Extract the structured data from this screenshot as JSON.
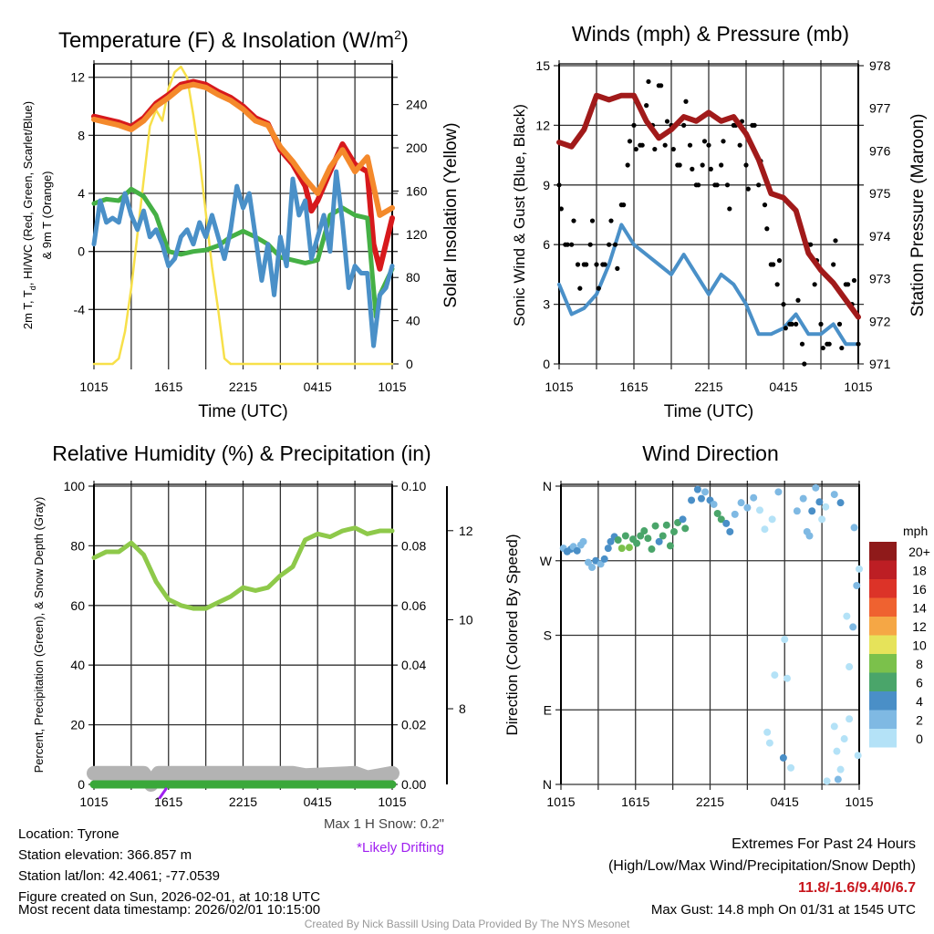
{
  "chart_data": [
    {
      "type": "line",
      "title": "Temperature (F) & Insolation (W/m2)",
      "xlabel": "Time (UTC)",
      "ylabel": "2m T, Td, HI/WC (Red, Green, Scarlet/Blue) & 9m T (Orange)",
      "ylabel2": "Solar Insolation (Yellow)",
      "ylim": [
        -7.75,
        12.8
      ],
      "ylim2": [
        0,
        276
      ],
      "yticks": [
        "12",
        "8",
        "4",
        "0",
        "-4"
      ],
      "yticks2": [
        "240",
        "200",
        "160",
        "120",
        "80",
        "40",
        "0"
      ],
      "xticks": [
        "1015",
        "1615",
        "2215",
        "0415",
        "1015"
      ],
      "series": [
        {
          "name": "9m T",
          "color": "#f4892b",
          "x": [
            0,
            1,
            2,
            3,
            4,
            5,
            6,
            7,
            8,
            9,
            10,
            11,
            12,
            13,
            14,
            15,
            16,
            17,
            18,
            19,
            20,
            21,
            22,
            23,
            24
          ],
          "values": [
            9.1,
            8.9,
            8.7,
            8.4,
            9.0,
            10.0,
            10.6,
            11.3,
            11.5,
            11.3,
            10.8,
            10.4,
            9.8,
            9.0,
            8.7,
            7.2,
            6.2,
            5.0,
            4.0,
            5.8,
            7.0,
            5.5,
            6.5,
            2.5,
            3.0
          ]
        },
        {
          "name": "2m T",
          "color": "#d7191c",
          "x": [
            0,
            1,
            2,
            3,
            4,
            5,
            6,
            7,
            8,
            9,
            10,
            11,
            12,
            13,
            14,
            15,
            16,
            17,
            17.5,
            18,
            19,
            20,
            21,
            22,
            22.5,
            23,
            24
          ],
          "values": [
            9.3,
            9.1,
            8.9,
            8.6,
            9.2,
            10.2,
            10.8,
            11.5,
            11.7,
            11.5,
            11.0,
            10.6,
            10.0,
            9.2,
            8.8,
            7.0,
            6.0,
            4.5,
            2.8,
            3.5,
            5.5,
            7.4,
            6.0,
            5.5,
            0.5,
            -1.2,
            2.3
          ]
        },
        {
          "name": "Td",
          "color": "#45b045",
          "x": [
            0,
            1,
            2,
            3,
            4,
            5,
            6,
            7,
            8,
            9,
            10,
            11,
            12,
            13,
            14,
            15,
            16,
            17,
            18,
            19,
            20,
            21,
            22,
            22.7,
            23,
            24
          ],
          "values": [
            3.3,
            3.6,
            3.5,
            4.3,
            3.8,
            2.5,
            0,
            -0.2,
            0,
            0.1,
            0.4,
            1.0,
            1.4,
            1.0,
            0.5,
            -0.4,
            -0.6,
            -0.8,
            -0.6,
            2.5,
            3.0,
            2.5,
            2.3,
            -4.5,
            -3.0,
            -1.2
          ]
        },
        {
          "name": "HI/WC",
          "color": "#4a90c8",
          "x": [
            0,
            0.5,
            1,
            1.5,
            2,
            2.5,
            3,
            3.5,
            4,
            4.5,
            5,
            5.5,
            6,
            6.5,
            7,
            7.5,
            8,
            8.5,
            9,
            9.5,
            10,
            10.5,
            11,
            11.5,
            12,
            12.5,
            13,
            13.5,
            14,
            14.5,
            15,
            15.5,
            16,
            16.5,
            17,
            17.5,
            18,
            18.5,
            19,
            19.5,
            20,
            20.5,
            21,
            21.5,
            22,
            22.5,
            23,
            23.5,
            24
          ],
          "values": [
            0.5,
            3.5,
            2.0,
            2.3,
            2.0,
            4.0,
            2.5,
            1.5,
            2.8,
            1.0,
            1.5,
            0.5,
            -1.0,
            -0.5,
            1.0,
            1.5,
            0.5,
            2.0,
            1.0,
            2.5,
            1.0,
            -0.5,
            1.5,
            4.5,
            3.0,
            4.0,
            1.0,
            -2.0,
            0.5,
            -3.0,
            1.0,
            -1.0,
            5.0,
            2.5,
            3.5,
            -0.5,
            1.0,
            2.5,
            0,
            5.5,
            2.0,
            -2.5,
            -1.0,
            -1.5,
            -1.5,
            -6.5,
            -3.0,
            -2.5,
            -1.0
          ]
        },
        {
          "name": "Solar Insolation",
          "axis": "right",
          "color": "#f7e04a",
          "x": [
            0,
            1.5,
            2,
            2.5,
            3,
            3.5,
            4,
            4.5,
            5,
            5.5,
            6,
            6.5,
            7,
            7.5,
            8,
            8.5,
            9,
            9.5,
            10,
            10.5,
            11,
            24
          ],
          "values": [
            0,
            0,
            5,
            30,
            70,
            120,
            170,
            220,
            235,
            225,
            255,
            270,
            275,
            265,
            230,
            190,
            140,
            90,
            50,
            5,
            0,
            0
          ]
        }
      ]
    },
    {
      "type": "line",
      "title": "Winds (mph) & Pressure (mb)",
      "xlabel": "Time (UTC)",
      "ylabel": "Sonic Wind & Gust (Blue, Black)",
      "ylabel2": "Station Pressure (Maroon)",
      "ylim": [
        0,
        15
      ],
      "ylim2": [
        971,
        978
      ],
      "yticks": [
        "15",
        "12",
        "9",
        "6",
        "3",
        "0"
      ],
      "yticks2": [
        "978",
        "977",
        "976",
        "975",
        "974",
        "973",
        "972",
        "971"
      ],
      "xticks": [
        "1015",
        "1615",
        "2215",
        "0415",
        "1015"
      ],
      "series": [
        {
          "name": "Sonic Wind",
          "color": "#4a90c8",
          "x": [
            0,
            1,
            2,
            3,
            4,
            5,
            6,
            7,
            8,
            9,
            10,
            11,
            12,
            13,
            14,
            15,
            16,
            17,
            18,
            19,
            20,
            21,
            22,
            23,
            24
          ],
          "values": [
            4,
            2.5,
            2.8,
            3.5,
            5,
            7,
            6,
            5.5,
            5,
            4.5,
            5.5,
            4.5,
            3.5,
            4.5,
            4,
            3,
            1.5,
            1.5,
            1.8,
            2.5,
            1.5,
            1.5,
            2,
            1,
            1
          ]
        },
        {
          "name": "Gust",
          "type": "scatter",
          "color": "#000000",
          "step": 0.5,
          "values": [
            9,
            6,
            6,
            5,
            5,
            6,
            5,
            5,
            6,
            6,
            8,
            10,
            12,
            11,
            13,
            12,
            14,
            11,
            12,
            10,
            12,
            11,
            9,
            10,
            11,
            9,
            10,
            9,
            12,
            11,
            10,
            12,
            9,
            8,
            5,
            4,
            3,
            2,
            2,
            1,
            6,
            4,
            2,
            1,
            5,
            2,
            4,
            3,
            1
          ]
        },
        {
          "name": "Station Pressure",
          "axis": "right",
          "color": "#a11a1a",
          "x": [
            0,
            1,
            2,
            3,
            4,
            5,
            6,
            7,
            8,
            9,
            10,
            11,
            12,
            13,
            14,
            15,
            16,
            17,
            18,
            19,
            20,
            21,
            22,
            23,
            24
          ],
          "values": [
            976.2,
            976.1,
            976.5,
            977.3,
            977.2,
            977.3,
            977.3,
            976.7,
            976.3,
            976.5,
            976.8,
            976.7,
            976.9,
            976.7,
            976.8,
            976.4,
            975.8,
            975.0,
            974.9,
            974.6,
            973.6,
            973.2,
            972.9,
            972.5,
            972.1
          ]
        }
      ]
    },
    {
      "type": "line",
      "title": "Relative Humidity (%) & Precipitation (in)",
      "ylabel": "Percent, Precipitation (Green), & Snow Depth (Gray)",
      "ylim": [
        0,
        100
      ],
      "ylim2": [
        0,
        0.1
      ],
      "ylim3": [
        6.3,
        13.0
      ],
      "yticks": [
        "100",
        "80",
        "60",
        "40",
        "20",
        "0"
      ],
      "yticks2": [
        "0.10",
        "0.08",
        "0.06",
        "0.04",
        "0.02",
        "0.00"
      ],
      "yticks3": [
        "12",
        "10",
        "8"
      ],
      "xticks": [
        "1015",
        "1615",
        "2215",
        "0415",
        "1015"
      ],
      "series": [
        {
          "name": "Relative Humidity",
          "color": "#8ec94a",
          "x": [
            0,
            1,
            2,
            3,
            4,
            5,
            6,
            7,
            8,
            9,
            10,
            11,
            12,
            13,
            14,
            15,
            16,
            17,
            18,
            19,
            20,
            21,
            22,
            23,
            24
          ],
          "values": [
            76,
            78,
            78,
            81,
            77,
            68,
            62,
            60,
            59,
            59,
            61,
            63,
            66,
            65,
            66,
            70,
            73,
            82,
            84,
            83,
            85,
            86,
            84,
            85,
            85
          ]
        },
        {
          "name": "Snow Depth",
          "axis": "far",
          "color": "#b3b3b3",
          "x": [
            0,
            4,
            4.6,
            5.2,
            16,
            17,
            21,
            22,
            23,
            24
          ],
          "values": [
            6.55,
            6.55,
            6.3,
            6.55,
            6.55,
            6.5,
            6.55,
            6.45,
            6.5,
            6.55
          ]
        },
        {
          "name": "Precipitation",
          "axis": "right",
          "color": "#3aa83a",
          "x": [
            0,
            24
          ],
          "values": [
            0,
            0
          ]
        },
        {
          "name": "Likely Drifting",
          "color": "#a020f0",
          "x": [
            5.3,
            5.8
          ],
          "values": [
            6.0,
            6.2
          ]
        }
      ]
    },
    {
      "type": "scatter",
      "title": "Wind Direction",
      "ylabel": "Direction (Colored By Speed)",
      "yticks": [
        "N",
        "W",
        "S",
        "E",
        "N"
      ],
      "ylim": [
        0,
        360
      ],
      "xticks": [
        "1015",
        "1615",
        "2215",
        "0415",
        "1015"
      ],
      "colorbar": {
        "title": "mph",
        "labels": [
          "20+",
          "18",
          "16",
          "14",
          "12",
          "10",
          "8",
          "6",
          "4",
          "2",
          "0"
        ],
        "colors": [
          "#8f1a1a",
          "#bd1e24",
          "#dc3328",
          "#ef6230",
          "#f5a745",
          "#e6e35a",
          "#7bc14b",
          "#4aa56a",
          "#4a8fc7",
          "#7fb9e3",
          "#b4e2f7"
        ]
      },
      "points": [
        [
          0.2,
          285,
          3
        ],
        [
          0.5,
          281,
          4
        ],
        [
          0.8,
          284,
          4
        ],
        [
          1.0,
          287,
          2
        ],
        [
          1.3,
          282,
          4
        ],
        [
          1.6,
          289,
          2
        ],
        [
          1.8,
          293,
          2
        ],
        [
          2.2,
          268,
          3
        ],
        [
          2.5,
          262,
          2
        ],
        [
          2.8,
          270,
          4
        ],
        [
          3.2,
          266,
          2
        ],
        [
          3.5,
          272,
          4
        ],
        [
          3.8,
          285,
          4
        ],
        [
          4.0,
          293,
          5
        ],
        [
          4.3,
          299,
          5
        ],
        [
          4.6,
          295,
          6
        ],
        [
          4.9,
          285,
          8
        ],
        [
          5.2,
          300,
          6
        ],
        [
          5.5,
          286,
          8
        ],
        [
          5.8,
          296,
          6
        ],
        [
          6.1,
          291,
          7
        ],
        [
          6.4,
          300,
          6
        ],
        [
          6.7,
          306,
          6
        ],
        [
          7.0,
          297,
          6
        ],
        [
          7.3,
          284,
          7
        ],
        [
          7.6,
          312,
          6
        ],
        [
          7.9,
          293,
          5
        ],
        [
          8.2,
          300,
          6
        ],
        [
          8.5,
          313,
          7
        ],
        [
          8.8,
          288,
          6
        ],
        [
          9.1,
          305,
          6
        ],
        [
          9.4,
          316,
          6
        ],
        [
          9.8,
          320,
          4
        ],
        [
          10.0,
          309,
          6
        ],
        [
          10.5,
          343,
          4
        ],
        [
          11.0,
          356,
          4
        ],
        [
          11.3,
          345,
          4
        ],
        [
          11.6,
          353,
          3
        ],
        [
          12.0,
          343,
          4
        ],
        [
          12.3,
          338,
          3
        ],
        [
          12.6,
          327,
          6
        ],
        [
          12.9,
          320,
          7
        ],
        [
          13.3,
          315,
          4
        ],
        [
          13.6,
          305,
          4
        ],
        [
          14.0,
          326,
          3
        ],
        [
          14.5,
          340,
          2
        ],
        [
          15.0,
          334,
          2
        ],
        [
          15.5,
          346,
          2
        ],
        [
          16.0,
          331,
          1
        ],
        [
          16.4,
          308,
          1
        ],
        [
          17.0,
          320,
          1
        ],
        [
          17.5,
          353,
          2
        ],
        [
          17.2,
          132,
          1
        ],
        [
          16.6,
          63,
          0
        ],
        [
          16.8,
          50,
          1
        ],
        [
          17.9,
          32,
          4
        ],
        [
          18.2,
          128,
          1
        ],
        [
          18.0,
          175,
          0
        ],
        [
          18.5,
          20,
          0
        ],
        [
          19.0,
          330,
          3
        ],
        [
          19.5,
          345,
          2
        ],
        [
          19.8,
          305,
          3
        ],
        [
          20.2,
          330,
          4
        ],
        [
          20.0,
          300,
          2
        ],
        [
          20.5,
          358,
          2
        ],
        [
          20.8,
          341,
          4
        ],
        [
          21.0,
          320,
          0
        ],
        [
          21.3,
          335,
          1
        ],
        [
          22.0,
          350,
          3
        ],
        [
          22.5,
          340,
          4
        ],
        [
          23.0,
          203,
          0
        ],
        [
          23.2,
          142,
          0
        ],
        [
          23.5,
          190,
          2
        ],
        [
          23.8,
          240,
          3
        ],
        [
          23.6,
          310,
          2
        ],
        [
          24.0,
          260,
          1
        ],
        [
          22.0,
          70,
          0
        ],
        [
          22.2,
          40,
          1
        ],
        [
          22.8,
          55,
          0
        ],
        [
          22.5,
          18,
          1
        ],
        [
          23.2,
          79,
          1
        ],
        [
          22.3,
          6,
          3
        ],
        [
          21.4,
          4,
          1
        ],
        [
          23.9,
          35,
          0
        ]
      ]
    }
  ],
  "titles": {
    "temp_main": "Temperature (F) & Insolation (W/m",
    "temp_sup": "2",
    "temp_end": ")",
    "xlabel": "Time (UTC)"
  },
  "temp_ylabel": {
    "line1a": "2m T, T",
    "line1sub": "d",
    "line1b": ", HI/WC (Red, Green, Scarlet/Blue)",
    "line2": "& 9m T (Orange)"
  },
  "snow": {
    "max1h": "Max 1 H Snow: 0.2\"",
    "drifting": "*Likely Drifting"
  },
  "info": {
    "location": "Location: Tyrone",
    "elevation": "Station elevation: 366.857 m",
    "latlon": "Station lat/lon: 42.4061; -77.0539",
    "created": "Figure created on Sun, 2026-02-01, at 10:18 UTC",
    "recent": "Most recent data timestamp: 2026/02/01 10:15:00"
  },
  "extremes": {
    "title": "Extremes For Past 24 Hours",
    "subtitle": "(High/Low/Max Wind/Precipitation/Snow Depth)",
    "values": "11.8/-1.6/9.4/0/6.7",
    "gust": "Max Gust: 14.8 mph On 01/31 at 1545 UTC"
  },
  "credit": "Created By Nick Bassill Using Data Provided By The NYS Mesonet"
}
